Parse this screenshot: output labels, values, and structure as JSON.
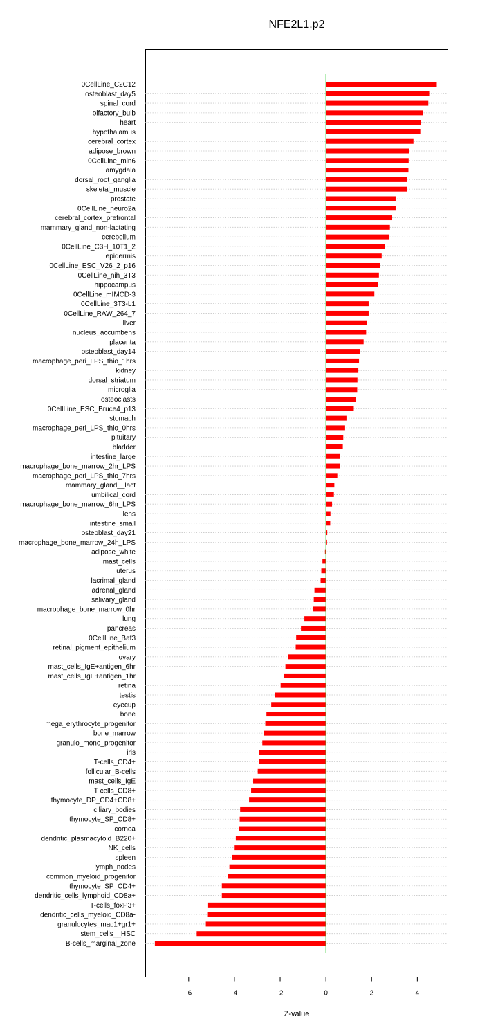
{
  "chart_data": {
    "type": "bar",
    "orientation": "horizontal",
    "title": "NFE2L1.p2",
    "xlabel": "Z-value",
    "ylabel": "",
    "xlim": [
      -7.9,
      5.35
    ],
    "xticks": [
      -6,
      -4,
      -2,
      0,
      2,
      4
    ],
    "grid": "dotted horizontal lines per category",
    "bar_color": "#ff0000",
    "zero_line_color": "#33cc33",
    "categories": [
      "0CellLine_C2C12",
      "osteoblast_day5",
      "spinal_cord",
      "olfactory_bulb",
      "heart",
      "hypothalamus",
      "cerebral_cortex",
      "adipose_brown",
      "0CellLine_min6",
      "amygdala",
      "dorsal_root_ganglia",
      "skeletal_muscle",
      "prostate",
      "0CellLine_neuro2a",
      "cerebral_cortex_prefrontal",
      "mammary_gland_non-lactating",
      "cerebellum",
      "0CellLine_C3H_10T1_2",
      "epidermis",
      "0CellLine_ESC_V26_2_p16",
      "0CellLine_nih_3T3",
      "hippocampus",
      "0CellLine_mIMCD-3",
      "0CellLine_3T3-L1",
      "0CellLine_RAW_264_7",
      "liver",
      "nucleus_accumbens",
      "placenta",
      "osteoblast_day14",
      "macrophage_peri_LPS_thio_1hrs",
      "kidney",
      "dorsal_striatum",
      "microglia",
      "osteoclasts",
      "0CellLine_ESC_Bruce4_p13",
      "stomach",
      "macrophage_peri_LPS_thio_0hrs",
      "pituitary",
      "bladder",
      "intestine_large",
      "macrophage_bone_marrow_2hr_LPS",
      "macrophage_peri_LPS_thio_7hrs",
      "mammary_gland__lact",
      "umbilical_cord",
      "macrophage_bone_marrow_6hr_LPS",
      "lens",
      "intestine_small",
      "osteoblast_day21",
      "macrophage_bone_marrow_24h_LPS",
      "adipose_white",
      "mast_cells",
      "uterus",
      "lacrimal_gland",
      "adrenal_gland",
      "salivary_gland",
      "macrophage_bone_marrow_0hr",
      "lung",
      "pancreas",
      "0CellLine_Baf3",
      "retinal_pigment_epithelium",
      "ovary",
      "mast_cells_IgE+antigen_6hr",
      "mast_cells_IgE+antigen_1hr",
      "retina",
      "testis",
      "eyecup",
      "bone",
      "mega_erythrocyte_progenitor",
      "bone_marrow",
      "granulo_mono_progenitor",
      "iris",
      "T-cells_CD4+",
      "follicular_B-cells",
      "mast_cells_IgE",
      "T-cells_CD8+",
      "thymocyte_DP_CD4+CD8+",
      "ciliary_bodies",
      "thymocyte_SP_CD8+",
      "cornea",
      "dendritic_plasmacytoid_B220+",
      "NK_cells",
      "spleen",
      "lymph_nodes",
      "common_myeloid_progenitor",
      "thymocyte_SP_CD4+",
      "dendritic_cells_lymphoid_CD8a+",
      "T-cells_foxP3+",
      "dendritic_cells_myeloid_CD8a-",
      "granulocytes_mac1+gr1+",
      "stem_cells__HSC",
      "B-cells_marginal_zone"
    ],
    "values": [
      4.85,
      4.52,
      4.48,
      4.25,
      4.14,
      4.13,
      3.83,
      3.65,
      3.62,
      3.61,
      3.55,
      3.54,
      3.05,
      3.05,
      2.9,
      2.8,
      2.78,
      2.57,
      2.44,
      2.36,
      2.32,
      2.28,
      2.12,
      1.87,
      1.87,
      1.81,
      1.76,
      1.65,
      1.48,
      1.45,
      1.42,
      1.38,
      1.37,
      1.3,
      1.22,
      0.9,
      0.84,
      0.76,
      0.74,
      0.63,
      0.61,
      0.5,
      0.37,
      0.35,
      0.27,
      0.2,
      0.19,
      0.06,
      0.05,
      -0.04,
      -0.15,
      -0.2,
      -0.23,
      -0.5,
      -0.53,
      -0.55,
      -0.94,
      -1.09,
      -1.3,
      -1.32,
      -1.64,
      -1.77,
      -1.85,
      -1.98,
      -2.22,
      -2.39,
      -2.6,
      -2.65,
      -2.7,
      -2.78,
      -2.92,
      -2.93,
      -2.98,
      -3.18,
      -3.27,
      -3.36,
      -3.75,
      -3.77,
      -3.79,
      -3.94,
      -3.99,
      -4.1,
      -4.22,
      -4.3,
      -4.55,
      -4.55,
      -5.15,
      -5.16,
      -5.25,
      -5.65,
      -7.48
    ]
  }
}
